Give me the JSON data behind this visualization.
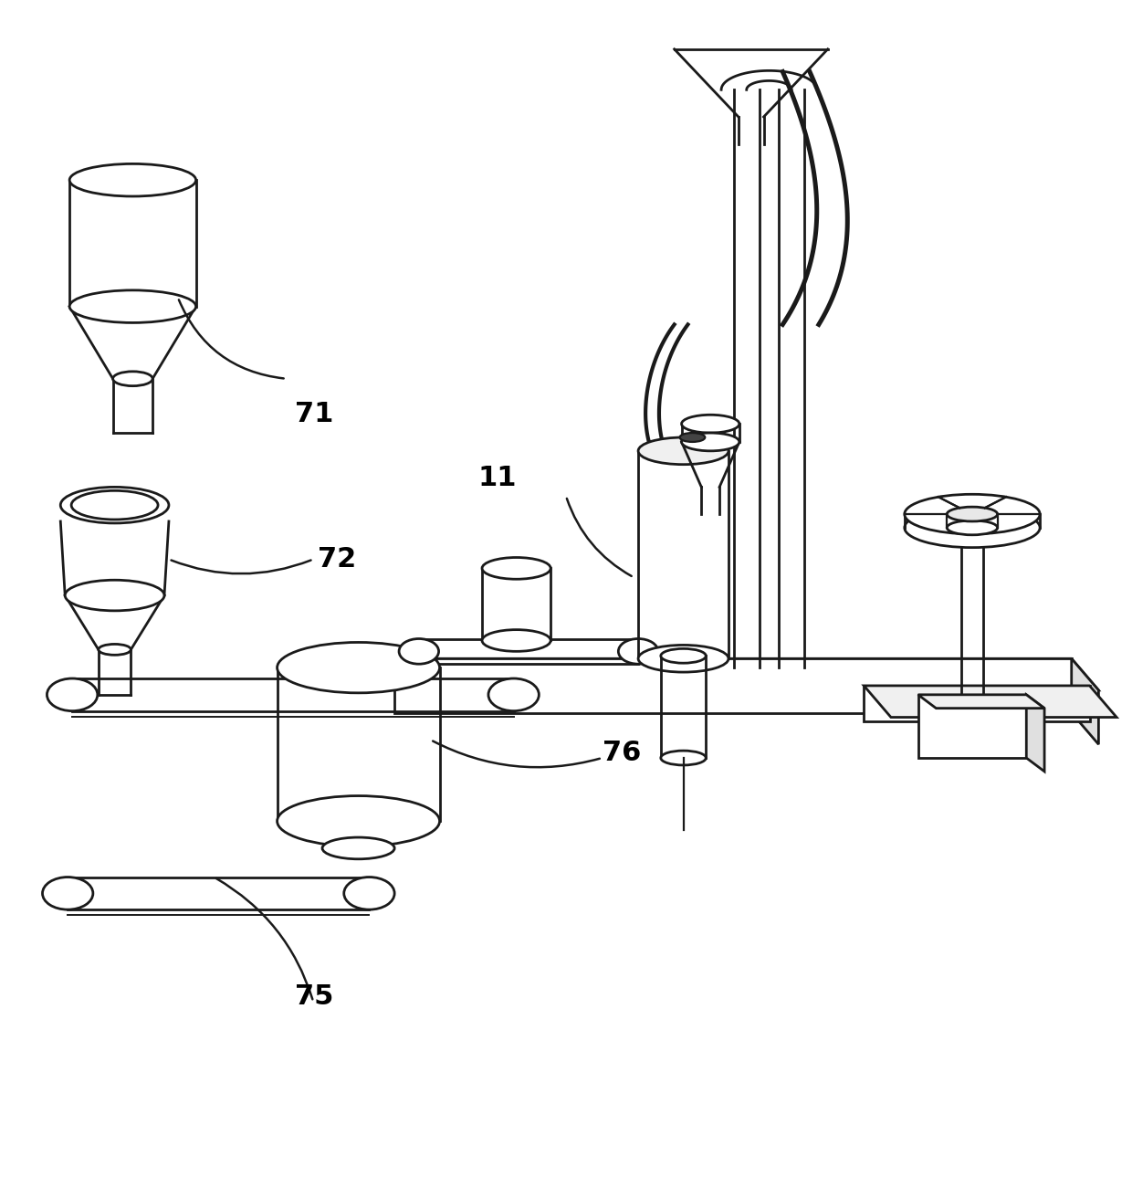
{
  "bg_color": "#ffffff",
  "line_color": "#1a1a1a",
  "label_color": "#000000",
  "label_fontsize": 22,
  "lw": 2.0
}
